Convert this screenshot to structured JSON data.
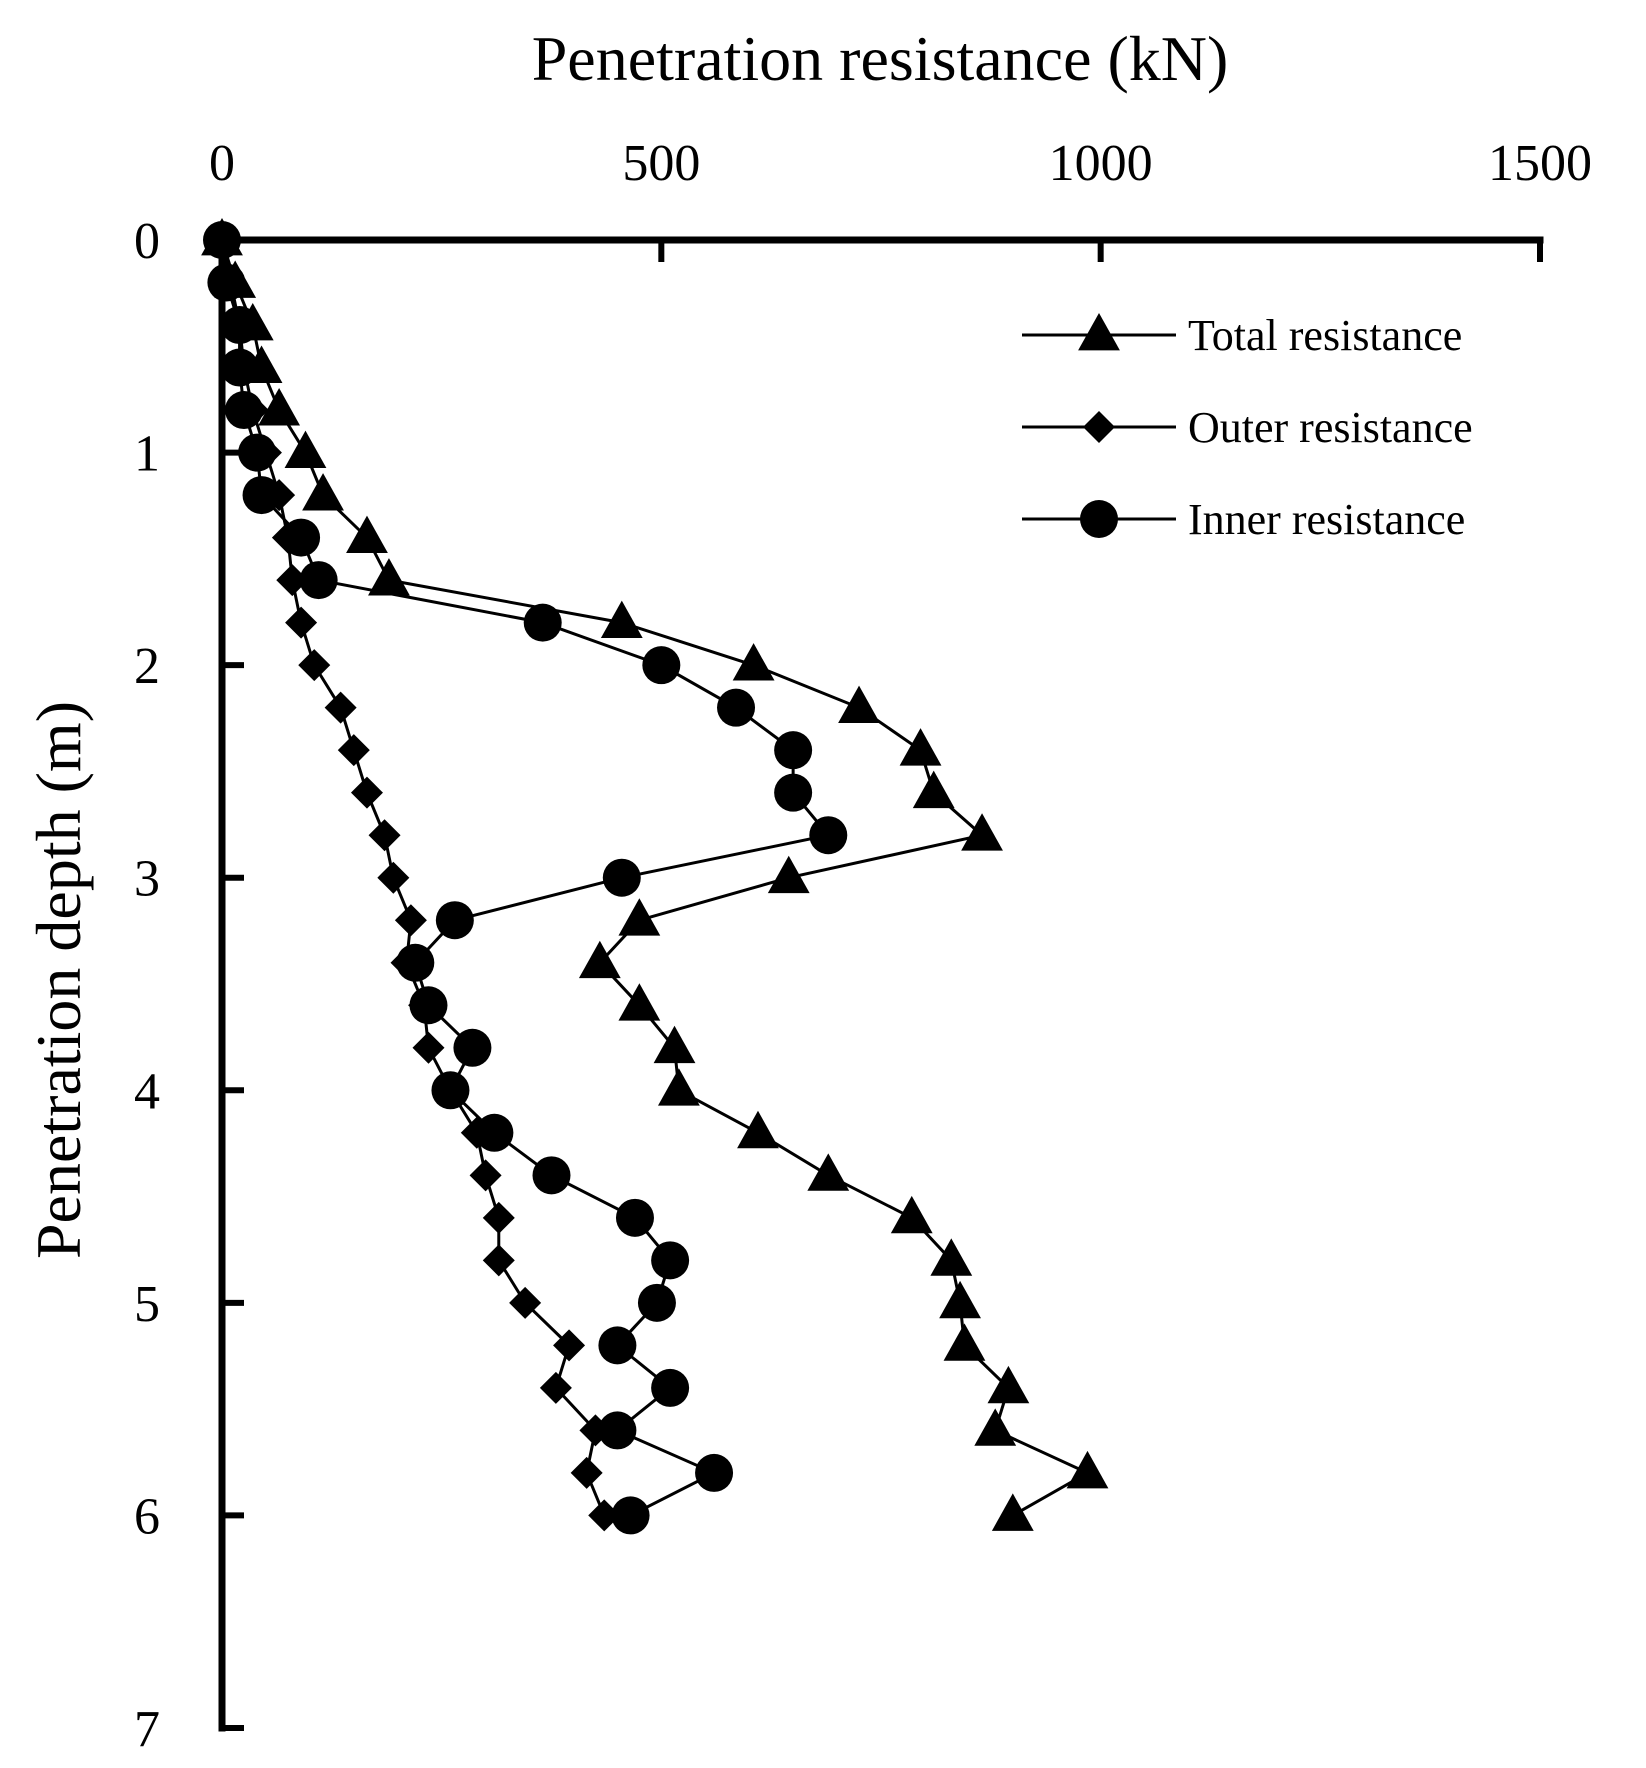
{
  "chart_data": {
    "type": "line",
    "xlabel": "Penetration resistance (kN)",
    "ylabel": "Penetration depth (m)",
    "xlim": [
      0,
      1500
    ],
    "ylim": [
      0,
      7
    ],
    "x_axis_position": "top",
    "y_axis_inverted": true,
    "xticks": [
      0,
      500,
      1000,
      1500
    ],
    "xtick_labels": [
      "0",
      "500",
      "1000",
      "1500"
    ],
    "yticks": [
      0,
      1,
      2,
      3,
      4,
      5,
      6,
      7
    ],
    "ytick_labels": [
      "0",
      "1",
      "2",
      "3",
      "4",
      "5",
      "6",
      "7"
    ],
    "grid": false,
    "legend_position": "top-right",
    "depths": [
      0,
      0.2,
      0.4,
      0.6,
      0.8,
      1.0,
      1.2,
      1.4,
      1.6,
      1.8,
      2.0,
      2.2,
      2.4,
      2.6,
      2.8,
      3.0,
      3.2,
      3.4,
      3.6,
      3.8,
      4.0,
      4.2,
      4.4,
      4.6,
      4.8,
      5.0,
      5.2,
      5.4,
      5.6,
      5.8,
      6.0
    ],
    "series": [
      {
        "name": "Total resistance",
        "marker": "triangle",
        "values": [
          0,
          15,
          35,
          45,
          65,
          95,
          115,
          165,
          190,
          455,
          605,
          725,
          795,
          810,
          865,
          645,
          475,
          430,
          475,
          515,
          520,
          610,
          690,
          785,
          830,
          840,
          845,
          895,
          880,
          985,
          900
        ]
      },
      {
        "name": "Outer resistance",
        "marker": "diamond",
        "values": [
          0,
          10,
          20,
          25,
          35,
          50,
          65,
          75,
          80,
          90,
          105,
          135,
          150,
          165,
          185,
          195,
          215,
          210,
          230,
          235,
          260,
          290,
          300,
          315,
          315,
          345,
          395,
          380,
          425,
          415,
          435
        ]
      },
      {
        "name": "Inner resistance",
        "marker": "circle",
        "values": [
          0,
          5,
          20,
          20,
          25,
          40,
          45,
          90,
          110,
          365,
          500,
          585,
          650,
          650,
          690,
          455,
          265,
          220,
          235,
          285,
          260,
          310,
          375,
          470,
          510,
          495,
          450,
          510,
          450,
          560,
          465
        ]
      }
    ]
  }
}
